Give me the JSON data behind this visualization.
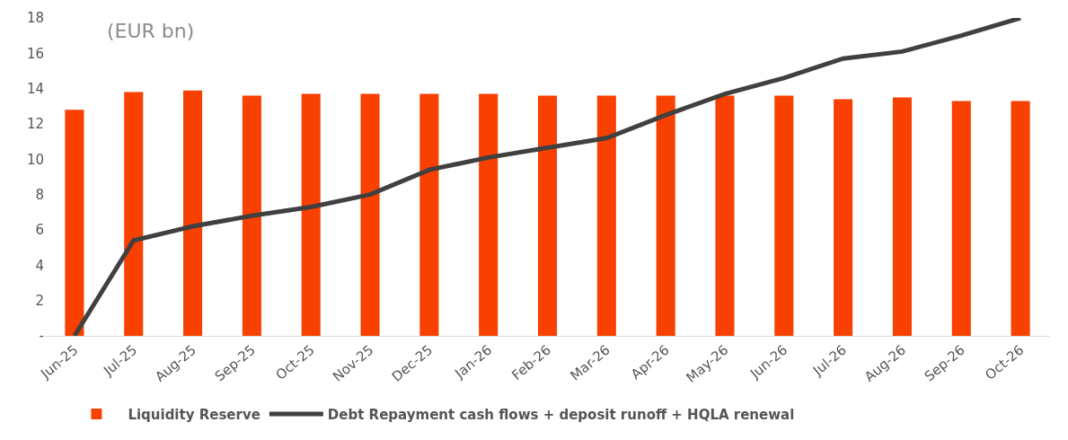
{
  "chart_data": {
    "type": "bar",
    "annotations": [
      "(EUR bn)"
    ],
    "categories": [
      "Jun-25",
      "Jul-25",
      "Aug-25",
      "Sep-25",
      "Oct-25",
      "Nov-25",
      "Dec-25",
      "Jan-26",
      "Feb-26",
      "Mar-26",
      "Apr-26",
      "May-26",
      "Jun-26",
      "Jul-26",
      "Aug-26",
      "Sep-26",
      "Oct-26"
    ],
    "series": [
      {
        "name": "Liquidity Reserve",
        "color": "#f84000",
        "values": [
          12.8,
          13.8,
          13.9,
          13.6,
          13.7,
          13.7,
          13.7,
          13.7,
          13.6,
          13.6,
          13.6,
          13.6,
          13.6,
          13.4,
          13.5,
          13.3,
          13.3
        ]
      },
      {
        "name": "Debt Repayment cash flows + deposit runoff + HQLA renewal",
        "type": "line",
        "color": "#404040",
        "line_style": "solid",
        "values": [
          0,
          5.4,
          6.2,
          6.8,
          7.3,
          8.0,
          9.4,
          10.1,
          10.65,
          11.2,
          12.5,
          13.7,
          14.6,
          15.7,
          16.1,
          17.0,
          18.0
        ]
      }
    ],
    "ylim": [
      0,
      18
    ],
    "yticks": [
      {
        "value": 0,
        "label": "-"
      },
      2,
      4,
      6,
      8,
      10,
      12,
      14,
      16,
      18
    ],
    "grid": false,
    "legend": "bottom",
    "marker": "none"
  }
}
